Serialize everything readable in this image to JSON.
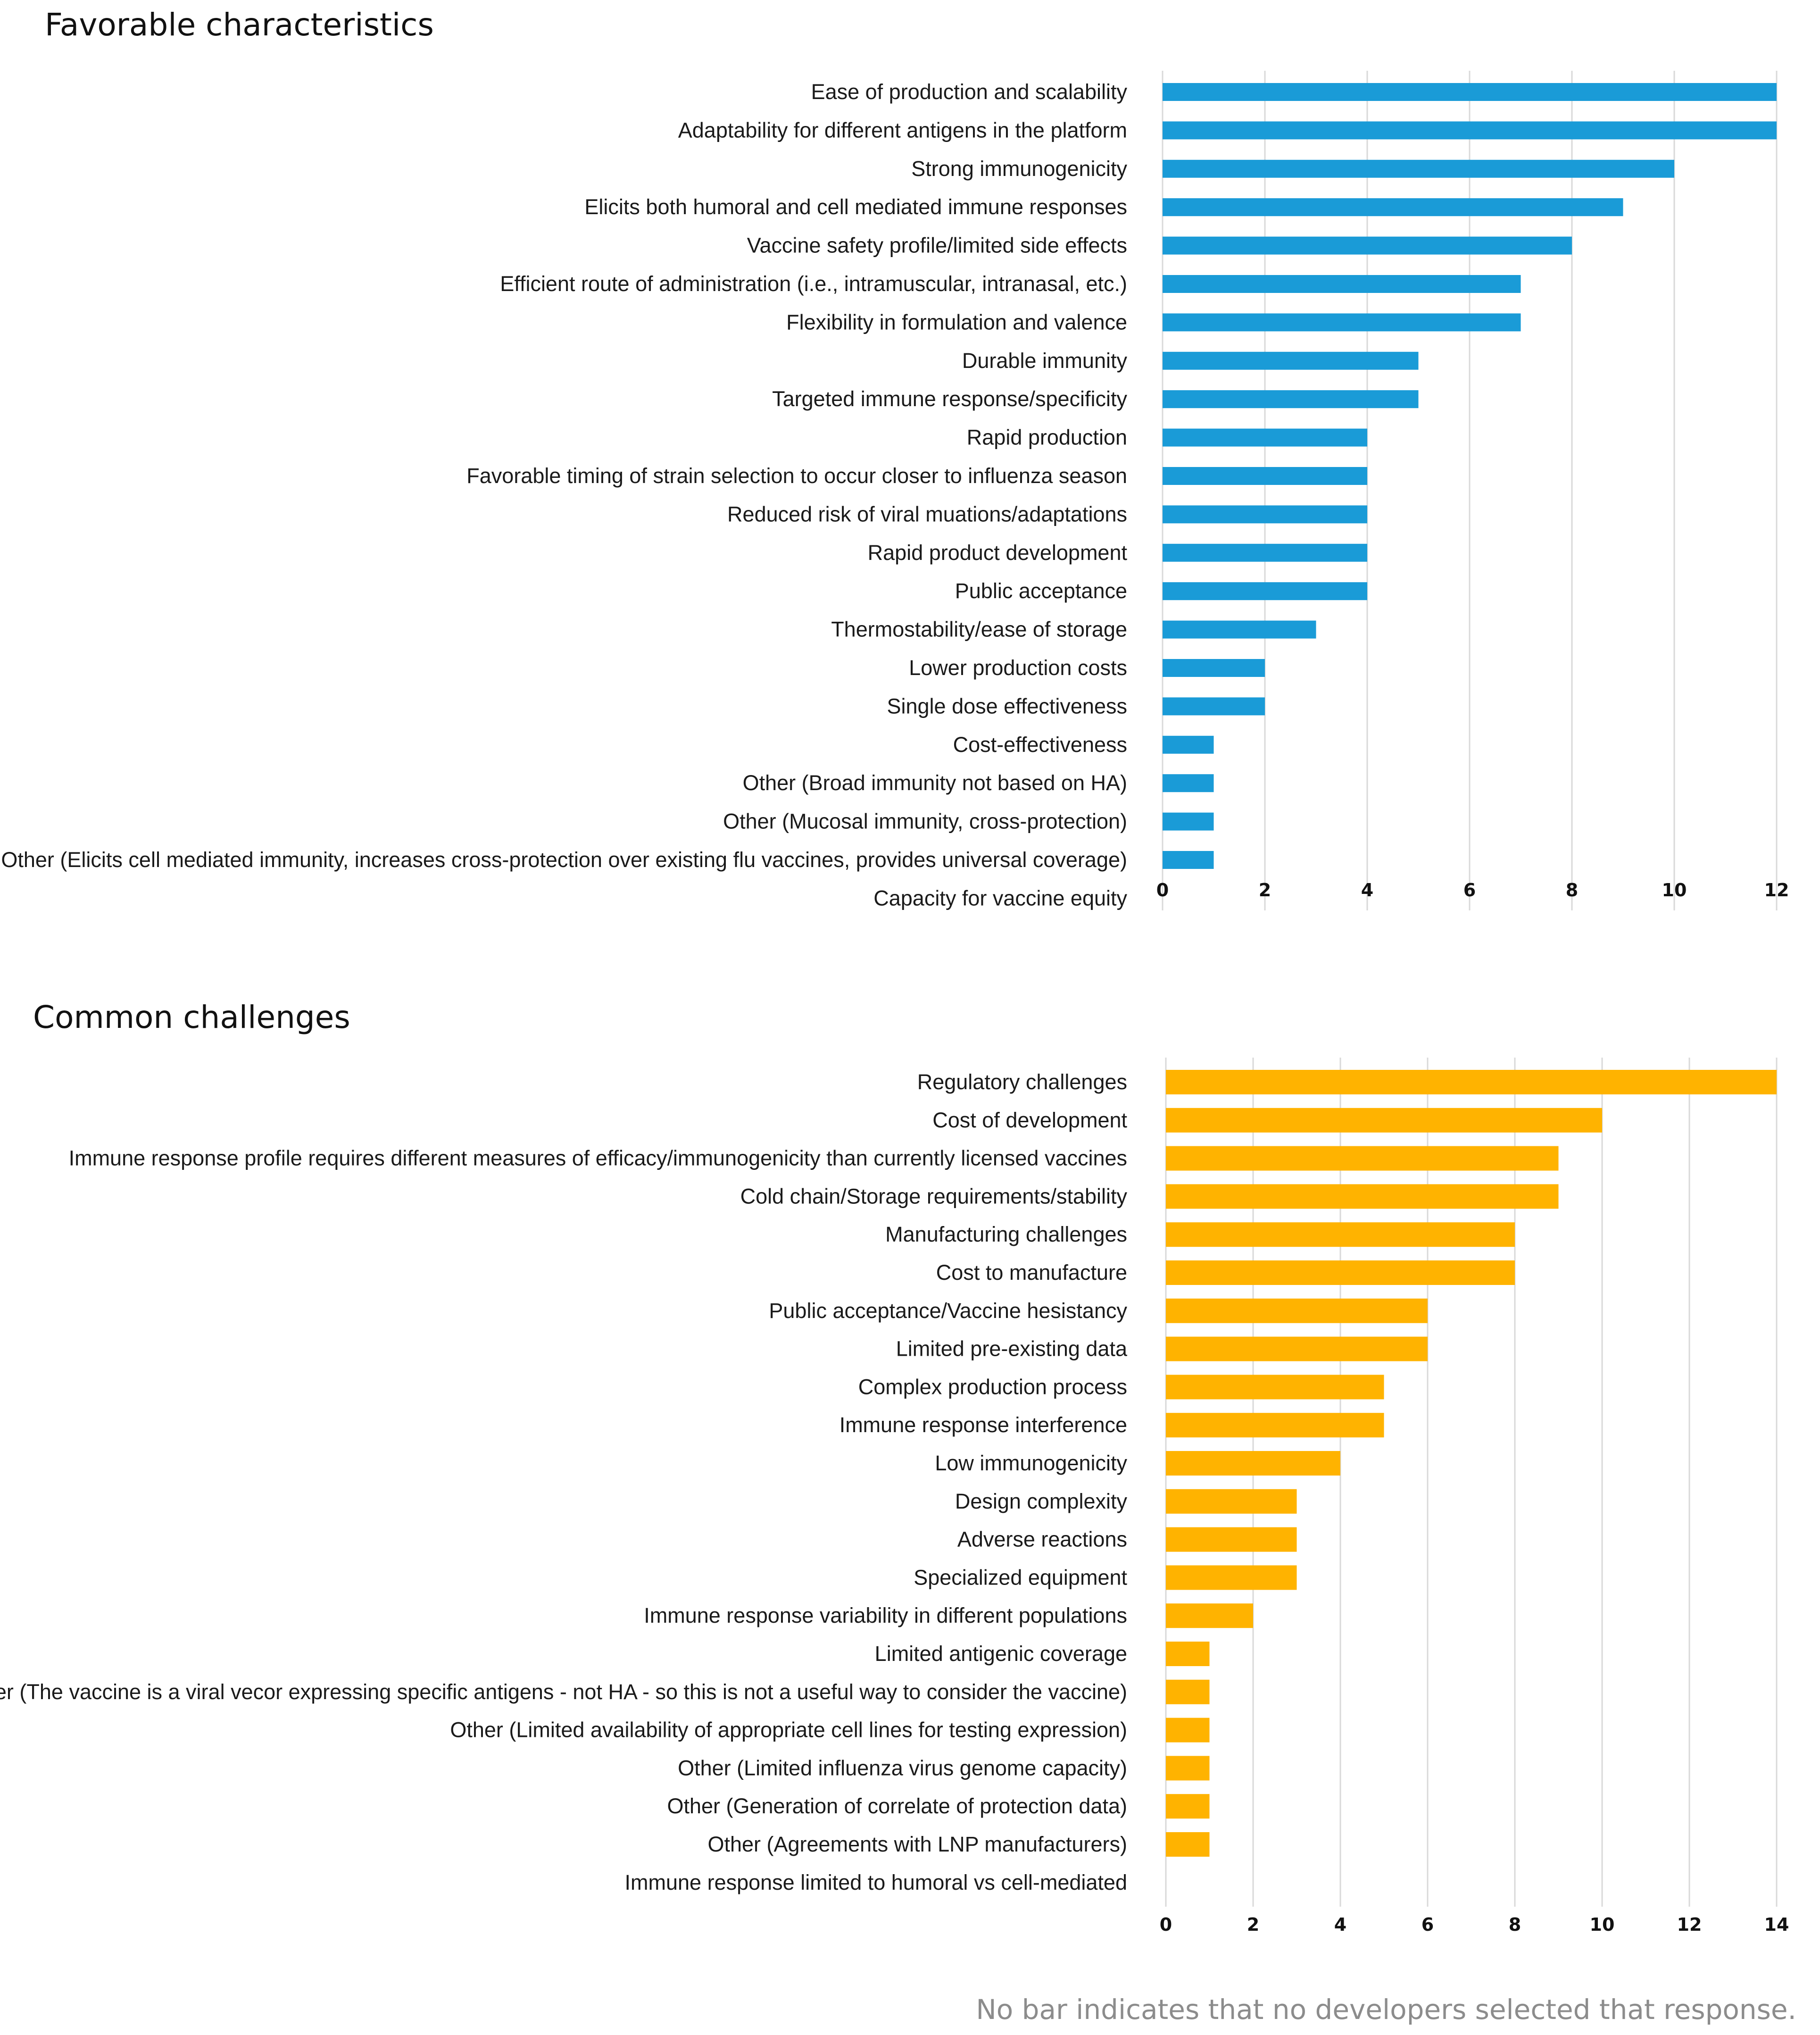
{
  "chart_data": [
    {
      "type": "bar",
      "orientation": "horizontal",
      "title": "Favorable characteristics",
      "xlabel": "",
      "ylabel": "",
      "xlim": [
        0,
        12
      ],
      "ticks": [
        "0",
        "2",
        "4",
        "6",
        "8",
        "10",
        "12"
      ],
      "grid": true,
      "color": "#1A9BD7",
      "categories": [
        "Ease of production and scalability",
        "Adaptability for different antigens in the platform",
        "Strong immunogenicity",
        "Elicits both humoral and cell mediated immune responses",
        "Vaccine safety profile/limited side effects",
        "Efficient route of administration (i.e., intramuscular, intranasal, etc.)",
        "Flexibility in formulation and valence",
        "Durable immunity",
        "Targeted immune response/specificity",
        "Rapid production",
        "Favorable timing of strain selection to occur closer to influenza season",
        "Reduced risk of viral muations/adaptations",
        "Rapid product development",
        "Public acceptance",
        "Thermostability/ease of storage",
        "Lower production costs",
        "Single dose effectiveness",
        "Cost-effectiveness",
        "Other (Broad immunity not based on HA)",
        "Other (Mucosal immunity, cross-protection)",
        "Other (Elicits cell mediated immunity, increases cross-protection over existing flu vaccines, provides universal coverage)",
        "Capacity for vaccine equity"
      ],
      "values": [
        12,
        12,
        10,
        9,
        8,
        7,
        7,
        5,
        5,
        4,
        4,
        4,
        4,
        4,
        3,
        2,
        2,
        1,
        1,
        1,
        1,
        0
      ]
    },
    {
      "type": "bar",
      "orientation": "horizontal",
      "title": "Common challenges",
      "xlabel": "",
      "ylabel": "",
      "xlim": [
        0,
        14
      ],
      "ticks": [
        "0",
        "2",
        "4",
        "6",
        "8",
        "10",
        "12",
        "14"
      ],
      "grid": true,
      "color": "#FFB300",
      "categories": [
        "Regulatory challenges",
        "Cost of development",
        "Immune response profile requires different measures of efficacy/immunogenicity than currently licensed vaccines",
        "Cold chain/Storage requirements/stability",
        "Manufacturing challenges",
        "Cost to manufacture",
        "Public acceptance/Vaccine hesistancy",
        "Limited pre-existing data",
        "Complex production process",
        "Immune response interference",
        "Low immunogenicity",
        "Design complexity",
        "Adverse reactions",
        "Specialized equipment",
        "Immune response variability in different populations",
        "Limited antigenic coverage",
        "Other (The vaccine is a viral vecor expressing specific antigens - not HA - so this is not a useful way to consider the vaccine)",
        "Other (Limited availability of appropriate cell lines for testing expression)",
        "Other (Limited influenza virus genome capacity)",
        "Other (Generation of correlate of protection data)",
        "Other (Agreements with LNP manufacturers)",
        "Immune response limited to humoral vs cell-mediated"
      ],
      "values": [
        14,
        10,
        9,
        9,
        8,
        8,
        6,
        6,
        5,
        5,
        4,
        3,
        3,
        3,
        2,
        1,
        1,
        1,
        1,
        1,
        1,
        0
      ]
    }
  ],
  "footnote": "No bar indicates that no developers selected that response."
}
